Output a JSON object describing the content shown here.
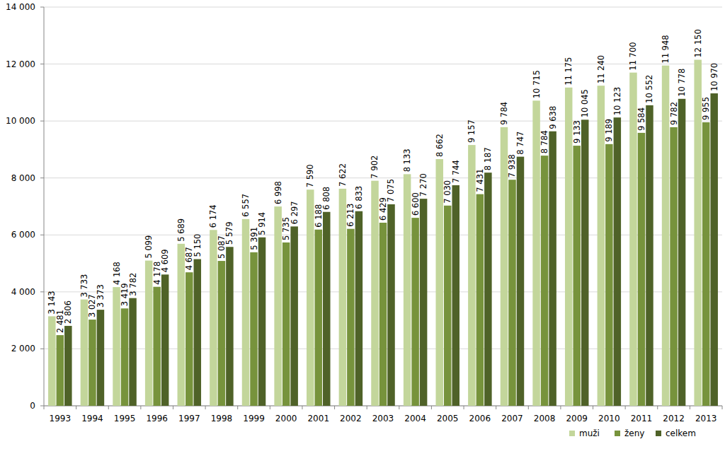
{
  "chart_data": {
    "type": "bar",
    "categories": [
      "1993",
      "1994",
      "1995",
      "1996",
      "1997",
      "1998",
      "1999",
      "2000",
      "2001",
      "2002",
      "2003",
      "2004",
      "2005",
      "2006",
      "2007",
      "2008",
      "2009",
      "2010",
      "2011",
      "2012",
      "2013"
    ],
    "series": [
      {
        "name": "muži",
        "color": "#c3d69b",
        "values": [
          3143,
          3733,
          4168,
          5099,
          5689,
          6174,
          6557,
          6998,
          7590,
          7622,
          7902,
          8133,
          8662,
          9157,
          9784,
          10715,
          11175,
          11240,
          11700,
          11948,
          12150
        ],
        "value_labels": [
          "3 143",
          "3 733",
          "4 168",
          "5 099",
          "5 689",
          "6 174",
          "6 557",
          "6 998",
          "7 590",
          "7 622",
          "7 902",
          "8 133",
          "8 662",
          "9 157",
          "9 784",
          "10 715",
          "11 175",
          "11 240",
          "11 700",
          "11 948",
          "12 150"
        ]
      },
      {
        "name": "ženy",
        "color": "#77933c",
        "values": [
          2481,
          3027,
          3419,
          4178,
          4687,
          5087,
          5391,
          5735,
          6188,
          6213,
          6429,
          6600,
          7030,
          7431,
          7938,
          8784,
          9133,
          9189,
          9584,
          9782,
          9955
        ],
        "value_labels": [
          "2 481",
          "3 027",
          "3 419",
          "4 178",
          "4 687",
          "5 087",
          "5 391",
          "5 735",
          "6 188",
          "6 213",
          "6 429",
          "6 600",
          "7 030",
          "7 431",
          "7 938",
          "8 784",
          "9 133",
          "9 189",
          "9 584",
          "9 782",
          "9 955"
        ]
      },
      {
        "name": "celkem",
        "color": "#4f6228",
        "values": [
          2806,
          3373,
          3782,
          4609,
          5150,
          5579,
          5914,
          6297,
          6808,
          6833,
          7075,
          7270,
          7744,
          8187,
          8747,
          9638,
          10045,
          10123,
          10552,
          10778,
          10970
        ],
        "value_labels": [
          "2 806",
          "3 373",
          "3 782",
          "4 609",
          "5 150",
          "5 579",
          "5 914",
          "6 297",
          "6 808",
          "6 833",
          "7 075",
          "7 270",
          "7 744",
          "8 187",
          "8 747",
          "9 638",
          "10 045",
          "10 123",
          "10 552",
          "10 778",
          "10 970"
        ]
      }
    ],
    "ylim": [
      0,
      14000
    ],
    "yticks": [
      0,
      {
        "value": 2000,
        "label": "2 000"
      },
      {
        "value": 4000,
        "label": "4 000"
      },
      {
        "value": 6000,
        "label": "6 000"
      },
      {
        "value": 8000,
        "label": "8 000"
      },
      {
        "value": 10000,
        "label": "10 000"
      },
      {
        "value": 12000,
        "label": "12 000"
      },
      {
        "value": 14000,
        "label": "14 000"
      }
    ],
    "grid": true,
    "data_labels": true,
    "legend": "bottom-right"
  }
}
